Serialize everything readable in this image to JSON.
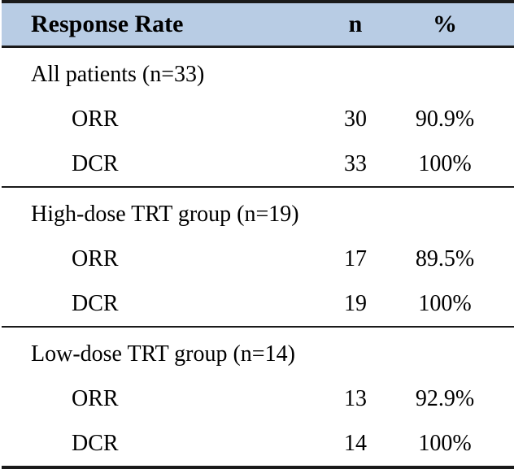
{
  "table": {
    "header": {
      "label": "Response Rate",
      "col_n": "n",
      "col_pct": "%"
    },
    "sections": [
      {
        "title": "All patients (n=33)",
        "rows": [
          {
            "label": "ORR",
            "n": "30",
            "pct": "90.9%"
          },
          {
            "label": "DCR",
            "n": "33",
            "pct": "100%"
          }
        ]
      },
      {
        "title": "High-dose TRT group (n=19)",
        "rows": [
          {
            "label": "ORR",
            "n": "17",
            "pct": "89.5%"
          },
          {
            "label": "DCR",
            "n": "19",
            "pct": "100%"
          }
        ]
      },
      {
        "title": "Low-dose TRT group (n=14)",
        "rows": [
          {
            "label": "ORR",
            "n": "13",
            "pct": "92.9%"
          },
          {
            "label": "DCR",
            "n": "14",
            "pct": "100%"
          }
        ]
      }
    ],
    "colors": {
      "header_bg": "#b8cce4",
      "rule": "#1a1a1a",
      "text": "#000000"
    }
  }
}
